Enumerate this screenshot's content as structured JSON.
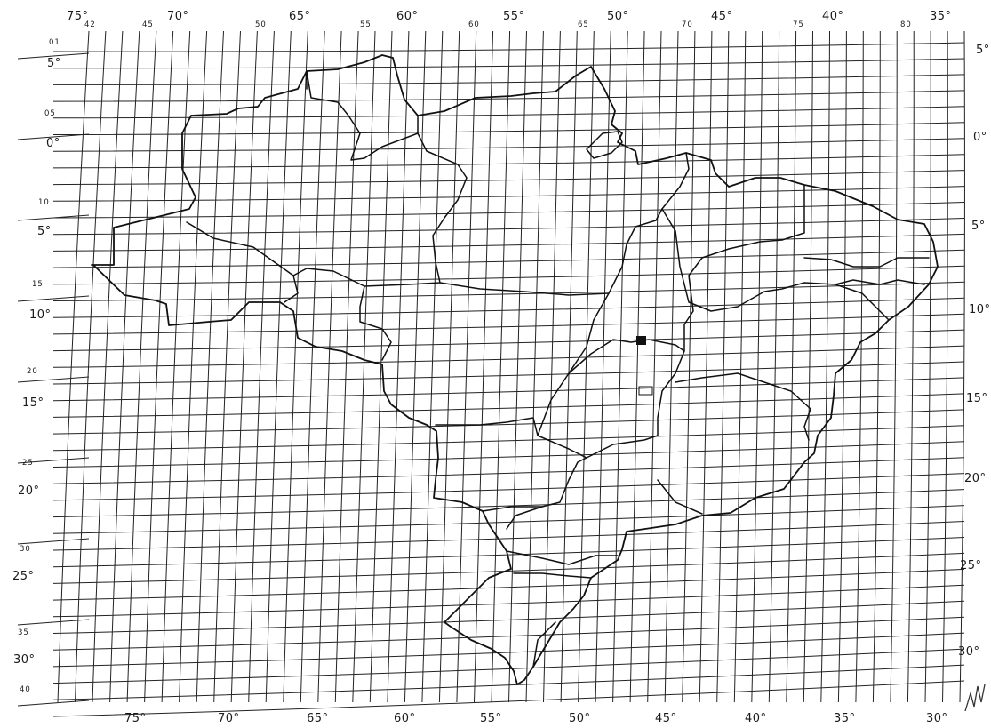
{
  "map": {
    "top_longitude_labels": [
      "75°",
      "70°",
      "65°",
      "60°",
      "55°",
      "50°",
      "45°",
      "40°",
      "35°"
    ],
    "top_zone_numbers": [
      "42",
      "45",
      "50",
      "55",
      "60",
      "65",
      "70",
      "75",
      "80"
    ],
    "bottom_longitude_labels": [
      "75°",
      "70°",
      "65°",
      "60°",
      "55°",
      "50°",
      "45°",
      "40°",
      "35°",
      "30°"
    ],
    "left_latitude_labels": [
      "5°",
      "0°",
      "5°",
      "10°",
      "15°",
      "20°",
      "25°",
      "30°"
    ],
    "left_zone_numbers": [
      "01",
      "05",
      "10",
      "15",
      "20",
      "25",
      "30",
      "35",
      "40"
    ],
    "right_latitude_labels": [
      "5°",
      "0°",
      "5°",
      "10°",
      "15°",
      "20°",
      "25°",
      "30°"
    ],
    "signature_mark": "initials",
    "colors": {
      "ink": "#1a1a1a",
      "paper": "#ffffff"
    }
  }
}
